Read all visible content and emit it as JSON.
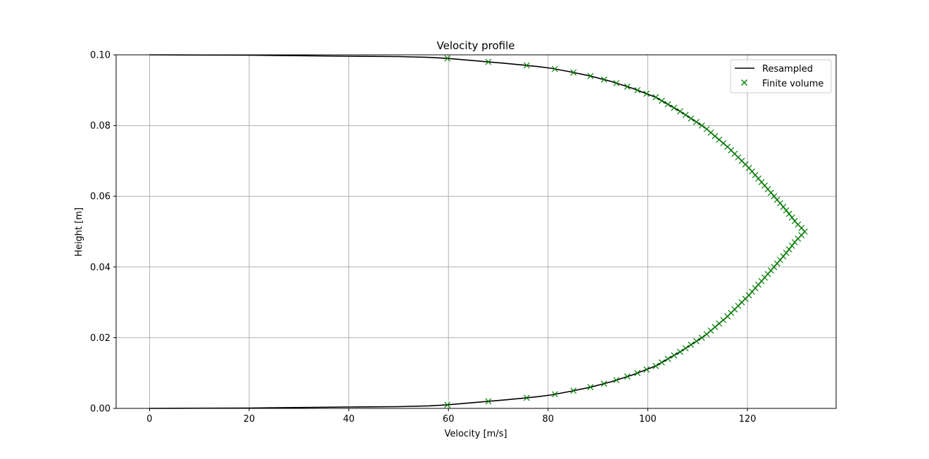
{
  "chart_data": {
    "type": "line",
    "title": "Velocity profile",
    "xlabel": "Velocity [m/s]",
    "ylabel": "Height [m]",
    "xlim": [
      -6.7,
      137.8
    ],
    "ylim": [
      0.0,
      0.1
    ],
    "xticks": [
      0,
      20,
      40,
      60,
      80,
      100,
      120
    ],
    "yticks": [
      0.0,
      0.02,
      0.04,
      0.06,
      0.08,
      0.1
    ],
    "xtick_labels": [
      "0",
      "20",
      "40",
      "60",
      "80",
      "100",
      "120"
    ],
    "ytick_labels": [
      "0.00",
      "0.02",
      "0.04",
      "0.06",
      "0.08",
      "0.10"
    ],
    "grid": true,
    "legend_position": "top-right",
    "legend": [
      {
        "label": "Resampled",
        "color": "#000000",
        "marker": "line"
      },
      {
        "label": "Finite volume",
        "color": "#008000",
        "marker": "x"
      }
    ],
    "series": [
      {
        "name": "Resampled",
        "kind": "line",
        "color": "#000000",
        "x": [
          0,
          20,
          40,
          50,
          56,
          59.8,
          71.3,
          75,
          77.8,
          80.6,
          84.4,
          88.5,
          92.6,
          97.0,
          101.6,
          106.5,
          111.4,
          116.0,
          120.3,
          124.1,
          127.5,
          129.8,
          131.2,
          131.5,
          131.2,
          129.8,
          127.5,
          124.1,
          120.3,
          116.0,
          111.4,
          106.5,
          101.6,
          97.0,
          92.6,
          88.5,
          84.4,
          80.6,
          77.8,
          75,
          71.3,
          59.8,
          56,
          50,
          40,
          20,
          0
        ],
        "y": [
          0.0,
          0.0001,
          0.0004,
          0.0005,
          0.0007,
          0.001,
          0.0024,
          0.0029,
          0.0033,
          0.0038,
          0.0048,
          0.006,
          0.0075,
          0.0095,
          0.012,
          0.016,
          0.0205,
          0.026,
          0.032,
          0.038,
          0.0435,
          0.0475,
          0.0495,
          0.05,
          0.0505,
          0.0525,
          0.0565,
          0.062,
          0.068,
          0.074,
          0.0795,
          0.084,
          0.088,
          0.0905,
          0.0925,
          0.094,
          0.0952,
          0.0962,
          0.0967,
          0.0971,
          0.0976,
          0.099,
          0.0993,
          0.0995,
          0.0996,
          0.0999,
          0.1
        ]
      },
      {
        "name": "Finite volume",
        "kind": "scatter",
        "marker": "x",
        "color": "#008000",
        "y_range": [
          0.001,
          0.099
        ],
        "count": 99,
        "x_rule": "interpolated from Resampled profile at each y"
      }
    ]
  }
}
